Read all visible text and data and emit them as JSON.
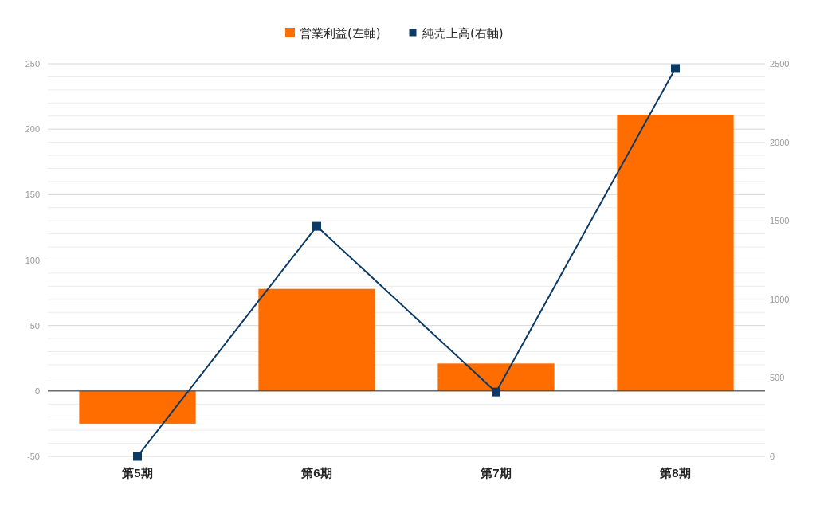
{
  "chart_data": {
    "type": "bar",
    "categories": [
      "第5期",
      "第6期",
      "第7期",
      "第8期"
    ],
    "series": [
      {
        "name": "営業利益(左軸)",
        "color": "#ff6d01",
        "values": [
          -25,
          78,
          21,
          211
        ]
      },
      {
        "name": "純売上高(右軸)",
        "type": "line",
        "axis": "y2",
        "color": "#0b3a64",
        "marker": "square",
        "values": [
          0,
          1465,
          410,
          2470
        ]
      }
    ],
    "ylim": [
      -50,
      250
    ],
    "yticks": [
      -50,
      {
        "value": -40,
        "label": null
      },
      {
        "value": -30,
        "label": null
      },
      {
        "value": -20,
        "label": null
      },
      {
        "value": -10,
        "label": null
      },
      0,
      {
        "value": 10,
        "label": null
      },
      {
        "value": 20,
        "label": null
      },
      {
        "value": 30,
        "label": null
      },
      {
        "value": 40,
        "label": null
      },
      50,
      {
        "value": 60,
        "label": null
      },
      {
        "value": 70,
        "label": null
      },
      {
        "value": 80,
        "label": null
      },
      {
        "value": 90,
        "label": null
      },
      100,
      {
        "value": 110,
        "label": null
      },
      {
        "value": 120,
        "label": null
      },
      {
        "value": 130,
        "label": null
      },
      {
        "value": 140,
        "label": null
      },
      150,
      {
        "value": 160,
        "label": null
      },
      {
        "value": 170,
        "label": null
      },
      {
        "value": 180,
        "label": null
      },
      {
        "value": 190,
        "label": null
      },
      200,
      {
        "value": 210,
        "label": null
      },
      {
        "value": 220,
        "label": null
      },
      {
        "value": 230,
        "label": null
      },
      {
        "value": 240,
        "label": null
      },
      250
    ],
    "y2lim": [
      0,
      2500
    ],
    "y2ticks": [
      0,
      500,
      1000,
      1500,
      2000,
      2500
    ],
    "grid": "y",
    "legend": "top"
  }
}
